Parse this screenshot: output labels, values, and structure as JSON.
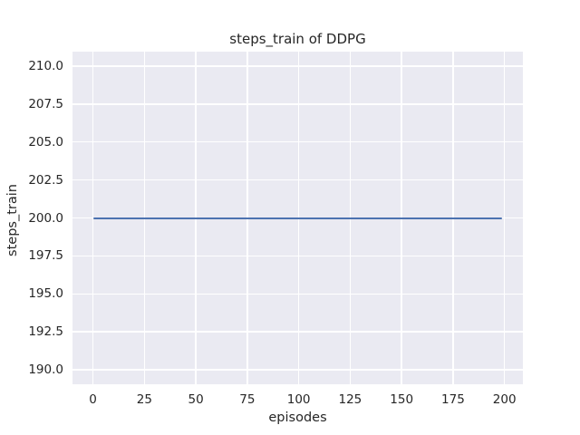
{
  "chart_data": {
    "type": "line",
    "title": "steps_train of DDPG",
    "xlabel": "episodes",
    "ylabel": "steps_train",
    "style": "seaborn-darkgrid",
    "grid": true,
    "legend": "none",
    "xlim": [
      -9.95,
      208.95
    ],
    "ylim": [
      189.05,
      210.95
    ],
    "x_ticks": {
      "values": [
        0,
        25,
        50,
        75,
        100,
        125,
        150,
        175,
        200
      ],
      "labels": [
        "0",
        "25",
        "50",
        "75",
        "100",
        "125",
        "150",
        "175",
        "200"
      ]
    },
    "y_ticks": {
      "values": [
        190,
        192.5,
        195,
        197.5,
        200,
        202.5,
        205,
        207.5,
        210
      ],
      "labels": [
        "190.0",
        "192.5",
        "195.0",
        "197.5",
        "200.0",
        "202.5",
        "205.0",
        "207.5",
        "210.0"
      ]
    },
    "series": [
      {
        "name": "steps_train",
        "color": "#4c72b0",
        "x": [
          0,
          199
        ],
        "y": [
          200,
          200
        ],
        "constant_value": 200
      }
    ],
    "colors": {
      "figure_bg": "#ffffff",
      "plot_bg": "#eaeaf2",
      "grid": "#ffffff",
      "text": "#262626",
      "line": "#4c72b0"
    }
  }
}
